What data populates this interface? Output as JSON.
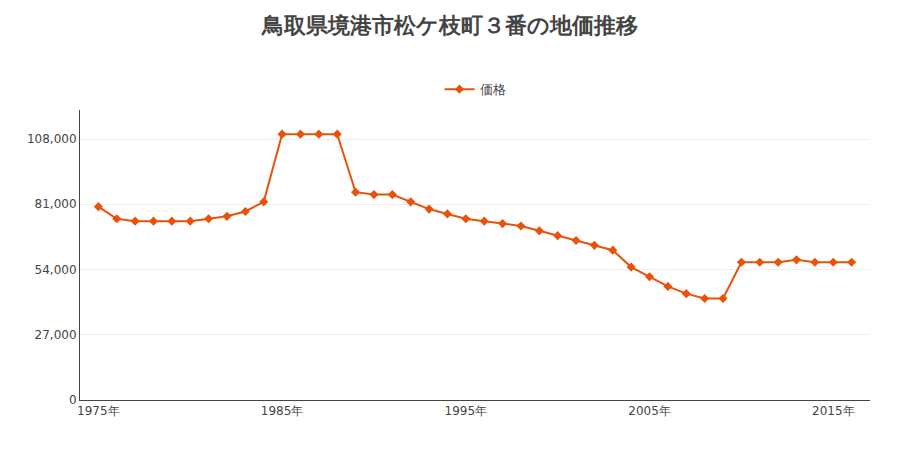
{
  "chart_data": {
    "type": "line",
    "title": "鳥取県境港市松ケ枝町３番の地価推移",
    "x": [
      1975,
      1976,
      1977,
      1978,
      1979,
      1980,
      1981,
      1982,
      1983,
      1984,
      1985,
      1986,
      1987,
      1988,
      1989,
      1990,
      1991,
      1992,
      1993,
      1994,
      1995,
      1996,
      1997,
      1998,
      1999,
      2000,
      2001,
      2002,
      2003,
      2004,
      2005,
      2006,
      2007,
      2008,
      2009,
      2010,
      2011,
      2012,
      2013,
      2014,
      2015,
      2016
    ],
    "series": [
      {
        "name": "価格",
        "color": "#e8520a",
        "marker": "diamond",
        "line_style": "solid",
        "values": [
          80000,
          75000,
          74000,
          74000,
          74000,
          74000,
          75000,
          76000,
          78000,
          82000,
          110000,
          110000,
          110000,
          110000,
          86000,
          85000,
          85000,
          82000,
          79000,
          77000,
          75000,
          74000,
          73000,
          72000,
          70000,
          68000,
          66000,
          64000,
          62000,
          55000,
          51000,
          47000,
          44000,
          42000,
          42000,
          57000,
          57000,
          57000,
          58000,
          57000,
          57000,
          57000
        ]
      }
    ],
    "xlim": [
      1974,
      2017
    ],
    "xticks": [
      {
        "value": 1975,
        "label": "1975年"
      },
      {
        "value": 1985,
        "label": "1985年"
      },
      {
        "value": 1995,
        "label": "1995年"
      },
      {
        "value": 2005,
        "label": "2005年"
      },
      {
        "value": 2015,
        "label": "2015年"
      }
    ],
    "ylim": [
      0,
      120000
    ],
    "yticks": [
      0,
      {
        "value": 27000,
        "label": "27,000"
      },
      {
        "value": 54000,
        "label": "54,000"
      },
      {
        "value": 81000,
        "label": "81,000"
      },
      {
        "value": 108000,
        "label": "108,000"
      }
    ],
    "grid": "y",
    "legend": "top"
  }
}
